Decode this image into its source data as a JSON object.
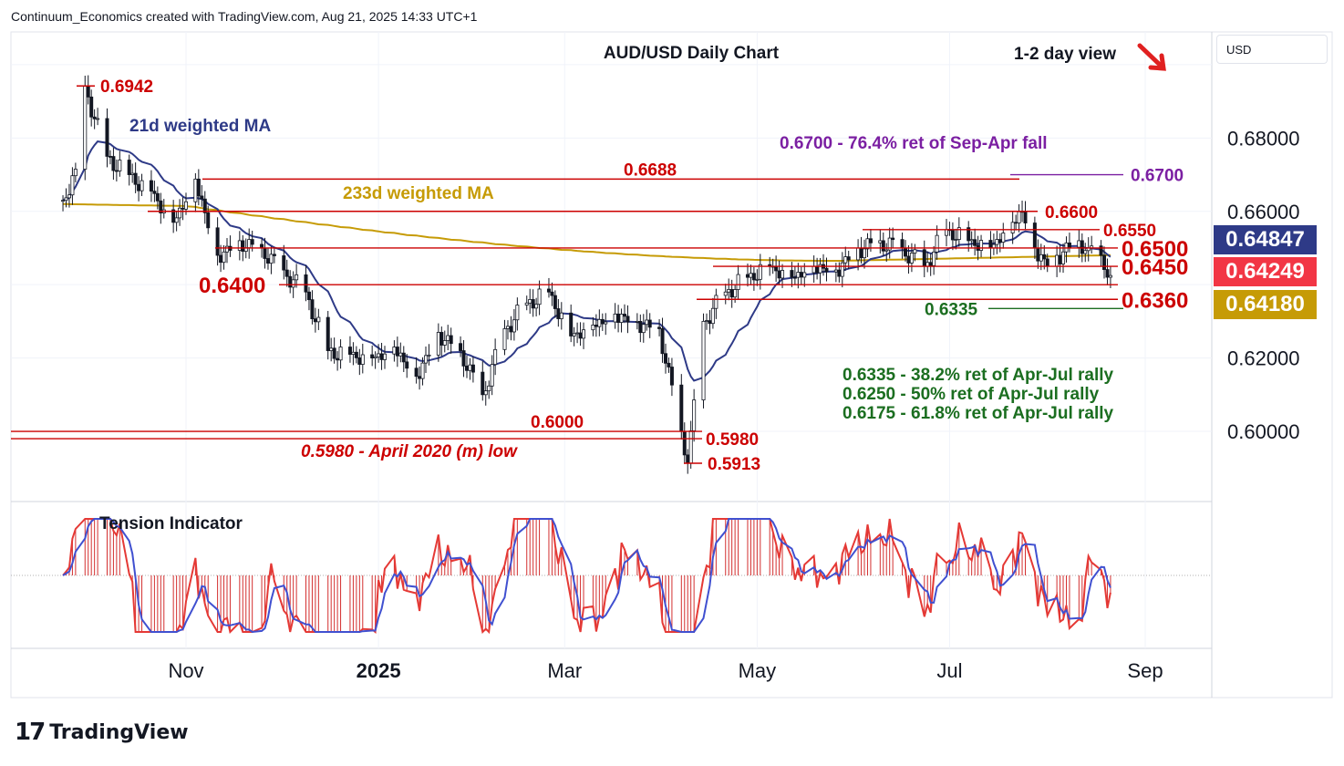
{
  "header": {
    "attribution": "Continuum_Economics created with TradingView.com, Aug 21, 2025 14:33 UTC+1"
  },
  "brand": {
    "logo_glyph": "17",
    "name": "TradingView"
  },
  "currency_selector": {
    "label": "USD"
  },
  "price_badges": [
    {
      "value": "0.64847",
      "color": "#2e3a87"
    },
    {
      "value": "0.64249",
      "color": "#f23645"
    },
    {
      "value": "0.64180",
      "color": "#c69b06"
    }
  ],
  "colors": {
    "up_candle": "#ffffff",
    "down_candle": "#131722",
    "ma21": "#2e3a87",
    "ma233": "#c69b06",
    "levels": "#cc0000",
    "fib": "#1b6e20",
    "tension_fill": "#d32f2f",
    "tension_signal": "#4050d0"
  },
  "chart_data": {
    "type": "candlestick",
    "title": "AUD/USD Daily Chart",
    "view_label": "1-2 day view",
    "view_direction_icon": "arrow-down-right-icon",
    "x_ticks": [
      "Nov",
      "2025",
      "Mar",
      "May",
      "Jul",
      "Sep"
    ],
    "y_ticks": [
      "0.68000",
      "0.66000",
      "0.62000",
      "0.60000"
    ],
    "ylim": [
      0.588,
      0.708
    ],
    "grid": true,
    "indicators": [
      {
        "name": "21d weighted MA",
        "color": "#2e3a87"
      },
      {
        "name": "233d weighted MA",
        "color": "#c69b06"
      }
    ],
    "price_path": [
      {
        "date": "2024-09-23",
        "close": 0.663
      },
      {
        "date": "2024-09-27",
        "close": 0.6715
      },
      {
        "date": "2024-09-30",
        "close": 0.6942
      },
      {
        "date": "2024-10-07",
        "close": 0.675
      },
      {
        "date": "2024-10-14",
        "close": 0.67
      },
      {
        "date": "2024-10-21",
        "close": 0.6655
      },
      {
        "date": "2024-10-28",
        "close": 0.657
      },
      {
        "date": "2024-11-04",
        "close": 0.6688
      },
      {
        "date": "2024-11-11",
        "close": 0.648
      },
      {
        "date": "2024-11-18",
        "close": 0.652
      },
      {
        "date": "2024-11-25",
        "close": 0.65
      },
      {
        "date": "2024-12-02",
        "close": 0.644
      },
      {
        "date": "2024-12-09",
        "close": 0.638
      },
      {
        "date": "2024-12-16",
        "close": 0.622
      },
      {
        "date": "2024-12-23",
        "close": 0.621
      },
      {
        "date": "2024-12-30",
        "close": 0.62
      },
      {
        "date": "2025-01-06",
        "close": 0.623
      },
      {
        "date": "2025-01-13",
        "close": 0.615
      },
      {
        "date": "2025-01-20",
        "close": 0.627
      },
      {
        "date": "2025-01-27",
        "close": 0.622
      },
      {
        "date": "2025-02-03",
        "close": 0.61
      },
      {
        "date": "2025-02-10",
        "close": 0.628
      },
      {
        "date": "2025-02-17",
        "close": 0.635
      },
      {
        "date": "2025-02-24",
        "close": 0.638
      },
      {
        "date": "2025-03-03",
        "close": 0.626
      },
      {
        "date": "2025-03-10",
        "close": 0.629
      },
      {
        "date": "2025-03-17",
        "close": 0.632
      },
      {
        "date": "2025-03-24",
        "close": 0.63
      },
      {
        "date": "2025-03-31",
        "close": 0.628
      },
      {
        "date": "2025-04-07",
        "close": 0.6
      },
      {
        "date": "2025-04-09",
        "close": 0.5913
      },
      {
        "date": "2025-04-14",
        "close": 0.63
      },
      {
        "date": "2025-04-21",
        "close": 0.638
      },
      {
        "date": "2025-04-28",
        "close": 0.642
      },
      {
        "date": "2025-05-05",
        "close": 0.645
      },
      {
        "date": "2025-05-12",
        "close": 0.642
      },
      {
        "date": "2025-05-19",
        "close": 0.645
      },
      {
        "date": "2025-05-26",
        "close": 0.644
      },
      {
        "date": "2025-06-02",
        "close": 0.65
      },
      {
        "date": "2025-06-09",
        "close": 0.652
      },
      {
        "date": "2025-06-16",
        "close": 0.65
      },
      {
        "date": "2025-06-23",
        "close": 0.645
      },
      {
        "date": "2025-06-30",
        "close": 0.655
      },
      {
        "date": "2025-07-07",
        "close": 0.652
      },
      {
        "date": "2025-07-14",
        "close": 0.65
      },
      {
        "date": "2025-07-21",
        "close": 0.657
      },
      {
        "date": "2025-07-24",
        "close": 0.66
      },
      {
        "date": "2025-07-28",
        "close": 0.65
      },
      {
        "date": "2025-08-01",
        "close": 0.645
      },
      {
        "date": "2025-08-04",
        "close": 0.648
      },
      {
        "date": "2025-08-11",
        "close": 0.652
      },
      {
        "date": "2025-08-14",
        "close": 0.65
      },
      {
        "date": "2025-08-18",
        "close": 0.648
      },
      {
        "date": "2025-08-21",
        "close": 0.6425
      }
    ],
    "levels": [
      {
        "value": 0.6942,
        "label": "0.6942",
        "role": "high"
      },
      {
        "value": 0.67,
        "label": "0.6700",
        "note": "0.6700 - 76.4% ret of Sep-Apr fall"
      },
      {
        "value": 0.6688,
        "label": "0.6688"
      },
      {
        "value": 0.66,
        "label": "0.6600"
      },
      {
        "value": 0.655,
        "label": "0.6550"
      },
      {
        "value": 0.65,
        "label": "0.6500"
      },
      {
        "value": 0.645,
        "label": "0.6450"
      },
      {
        "value": 0.64,
        "label": "0.6400"
      },
      {
        "value": 0.636,
        "label": "0.6360"
      },
      {
        "value": 0.6335,
        "label": "0.6335"
      },
      {
        "value": 0.6,
        "label": "0.6000"
      },
      {
        "value": 0.598,
        "label": "0.5980",
        "note": "0.5980 - April 2020 (m) low"
      },
      {
        "value": 0.5913,
        "label": "0.5913",
        "role": "low"
      }
    ],
    "annotations": [
      "0.6335 - 38.2% ret of Apr-Jul rally",
      "0.6250 - 50% ret of Apr-Jul rally",
      "0.6175 - 61.8% ret of Apr-Jul rally"
    ],
    "subpanel": {
      "title": "Tension Indicator"
    }
  }
}
